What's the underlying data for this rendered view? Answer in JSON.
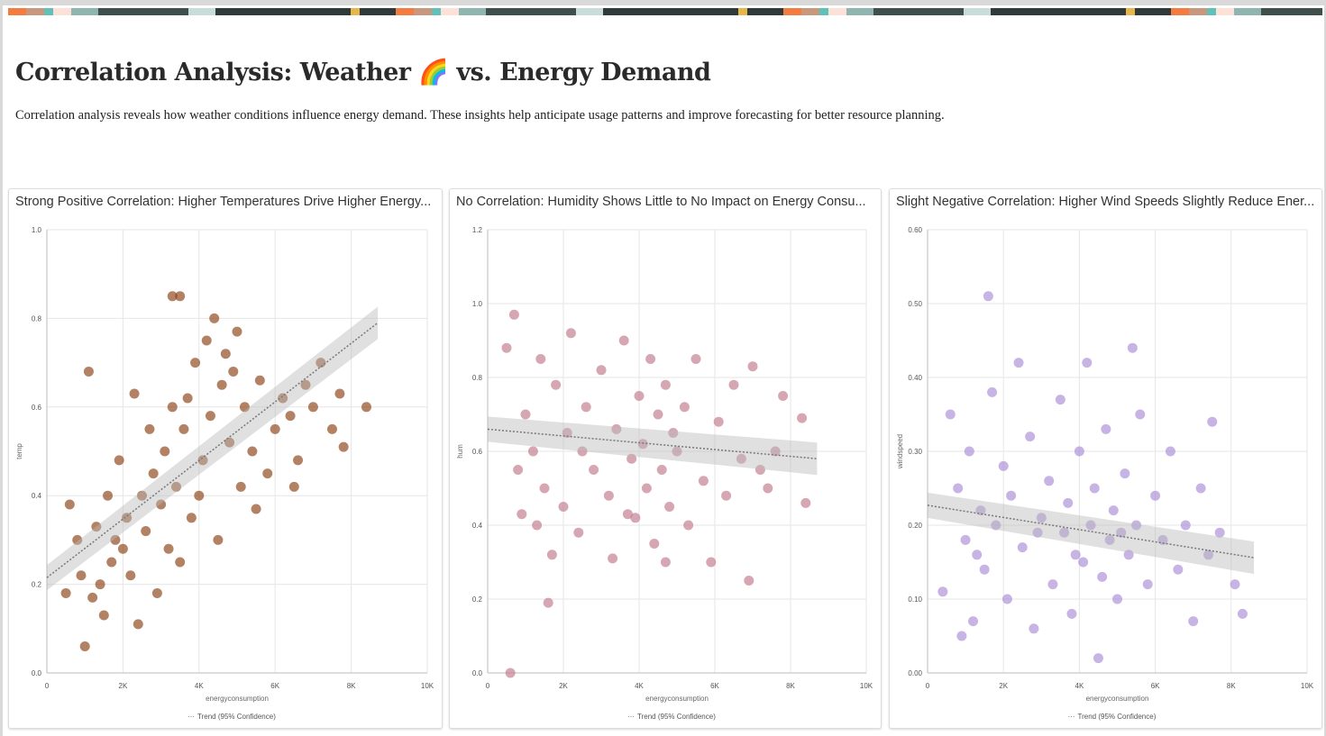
{
  "header": {
    "title": "Correlation Analysis: Weather 🌈 vs. Energy Demand",
    "description": "Correlation analysis reveals how weather conditions influence energy demand. These insights help anticipate usage patterns and improve forecasting for better resource planning."
  },
  "chart_data": [
    {
      "type": "scatter",
      "title": "Strong Positive Correlation: Higher Temperatures Drive Higher Energy...",
      "xlabel": "energyconsumption",
      "ylabel": "temp",
      "xlim": [
        0,
        10000
      ],
      "ylim": [
        0,
        1.0
      ],
      "xticks": [
        "0",
        "2K",
        "4K",
        "6K",
        "8K",
        "10K"
      ],
      "yticks": [
        "0.0",
        "0.2",
        "0.4",
        "0.6",
        "0.8",
        "1.0"
      ],
      "color": "#8b3f12",
      "legend": "Trend (95% Confidence)",
      "legend_position": "bottom",
      "grid": true,
      "trend": {
        "x": [
          0,
          8700
        ],
        "y": [
          0.215,
          0.79
        ]
      },
      "points": [
        [
          1100,
          0.68
        ],
        [
          3300,
          0.85
        ],
        [
          3500,
          0.85
        ],
        [
          1000,
          0.06
        ],
        [
          2400,
          0.11
        ],
        [
          8400,
          0.6
        ],
        [
          7800,
          0.51
        ],
        [
          600,
          0.38
        ],
        [
          800,
          0.3
        ],
        [
          900,
          0.22
        ],
        [
          1200,
          0.17
        ],
        [
          1400,
          0.2
        ],
        [
          1500,
          0.13
        ],
        [
          1700,
          0.25
        ],
        [
          1800,
          0.3
        ],
        [
          2000,
          0.28
        ],
        [
          2100,
          0.35
        ],
        [
          2200,
          0.22
        ],
        [
          2500,
          0.4
        ],
        [
          2600,
          0.32
        ],
        [
          2800,
          0.45
        ],
        [
          3000,
          0.38
        ],
        [
          3100,
          0.5
        ],
        [
          3200,
          0.28
        ],
        [
          3400,
          0.42
        ],
        [
          3600,
          0.55
        ],
        [
          3700,
          0.62
        ],
        [
          3800,
          0.35
        ],
        [
          3900,
          0.7
        ],
        [
          4100,
          0.48
        ],
        [
          4200,
          0.75
        ],
        [
          4300,
          0.58
        ],
        [
          4400,
          0.8
        ],
        [
          4600,
          0.65
        ],
        [
          4700,
          0.72
        ],
        [
          4800,
          0.52
        ],
        [
          4900,
          0.68
        ],
        [
          5000,
          0.77
        ],
        [
          5200,
          0.6
        ],
        [
          5400,
          0.5
        ],
        [
          5600,
          0.66
        ],
        [
          5800,
          0.45
        ],
        [
          6000,
          0.55
        ],
        [
          6200,
          0.62
        ],
        [
          6400,
          0.58
        ],
        [
          6600,
          0.48
        ],
        [
          6800,
          0.65
        ],
        [
          7000,
          0.6
        ],
        [
          7200,
          0.7
        ],
        [
          7500,
          0.55
        ],
        [
          7700,
          0.63
        ],
        [
          2300,
          0.63
        ],
        [
          2700,
          0.55
        ],
        [
          1600,
          0.4
        ],
        [
          1300,
          0.33
        ],
        [
          500,
          0.18
        ],
        [
          3500,
          0.25
        ],
        [
          4000,
          0.4
        ],
        [
          4500,
          0.3
        ],
        [
          5100,
          0.42
        ],
        [
          5500,
          0.37
        ],
        [
          6500,
          0.42
        ],
        [
          2900,
          0.18
        ],
        [
          3300,
          0.6
        ],
        [
          1900,
          0.48
        ]
      ]
    },
    {
      "type": "scatter",
      "title": "No Correlation: Humidity Shows Little to No Impact on Energy Consu...",
      "xlabel": "energyconsumption",
      "ylabel": "hum",
      "xlim": [
        0,
        10000
      ],
      "ylim": [
        0,
        1.2
      ],
      "xticks": [
        "0",
        "2K",
        "4K",
        "6K",
        "8K",
        "10K"
      ],
      "yticks": [
        "0.0",
        "0.2",
        "0.4",
        "0.6",
        "0.8",
        "1.0",
        "1.2"
      ],
      "color": "#c07888",
      "legend": "Trend (95% Confidence)",
      "legend_position": "bottom",
      "grid": true,
      "trend": {
        "x": [
          0,
          8700
        ],
        "y": [
          0.66,
          0.58
        ]
      },
      "points": [
        [
          600,
          0.0
        ],
        [
          1600,
          0.19
        ],
        [
          6900,
          0.25
        ],
        [
          7800,
          0.75
        ],
        [
          8300,
          0.69
        ],
        [
          8400,
          0.46
        ],
        [
          700,
          0.97
        ],
        [
          500,
          0.88
        ],
        [
          800,
          0.55
        ],
        [
          900,
          0.43
        ],
        [
          1000,
          0.7
        ],
        [
          1200,
          0.6
        ],
        [
          1400,
          0.85
        ],
        [
          1500,
          0.5
        ],
        [
          1700,
          0.32
        ],
        [
          1800,
          0.78
        ],
        [
          2000,
          0.45
        ],
        [
          2100,
          0.65
        ],
        [
          2200,
          0.92
        ],
        [
          2400,
          0.38
        ],
        [
          2600,
          0.72
        ],
        [
          2800,
          0.55
        ],
        [
          3000,
          0.82
        ],
        [
          3200,
          0.48
        ],
        [
          3300,
          0.31
        ],
        [
          3400,
          0.66
        ],
        [
          3600,
          0.9
        ],
        [
          3800,
          0.58
        ],
        [
          3900,
          0.42
        ],
        [
          4000,
          0.75
        ],
        [
          4100,
          0.62
        ],
        [
          4200,
          0.5
        ],
        [
          4300,
          0.85
        ],
        [
          4400,
          0.35
        ],
        [
          4500,
          0.7
        ],
        [
          4600,
          0.55
        ],
        [
          4700,
          0.78
        ],
        [
          4800,
          0.45
        ],
        [
          4900,
          0.65
        ],
        [
          5000,
          0.6
        ],
        [
          5200,
          0.72
        ],
        [
          5300,
          0.4
        ],
        [
          5500,
          0.85
        ],
        [
          5700,
          0.52
        ],
        [
          5900,
          0.3
        ],
        [
          6100,
          0.68
        ],
        [
          6300,
          0.48
        ],
        [
          6500,
          0.78
        ],
        [
          6700,
          0.58
        ],
        [
          7000,
          0.83
        ],
        [
          7200,
          0.55
        ],
        [
          7400,
          0.5
        ],
        [
          7600,
          0.6
        ],
        [
          2500,
          0.6
        ],
        [
          1300,
          0.4
        ],
        [
          3700,
          0.43
        ],
        [
          4700,
          0.3
        ]
      ]
    },
    {
      "type": "scatter",
      "title": "Slight Negative Correlation: Higher Wind Speeds Slightly Reduce Ener...",
      "xlabel": "energyconsumption",
      "ylabel": "windspeed",
      "xlim": [
        0,
        10000
      ],
      "ylim": [
        0,
        0.6
      ],
      "xticks": [
        "0",
        "2K",
        "4K",
        "6K",
        "8K",
        "10K"
      ],
      "yticks": [
        "0.00",
        "0.10",
        "0.20",
        "0.30",
        "0.40",
        "0.50",
        "0.60"
      ],
      "color": "#a98ad6",
      "legend": "Trend (95% Confidence)",
      "legend_position": "bottom",
      "grid": true,
      "trend": {
        "x": [
          0,
          8600
        ],
        "y": [
          0.227,
          0.156
        ]
      },
      "points": [
        [
          1600,
          0.51
        ],
        [
          5400,
          0.44
        ],
        [
          4500,
          0.02
        ],
        [
          400,
          0.11
        ],
        [
          8300,
          0.08
        ],
        [
          7500,
          0.34
        ],
        [
          600,
          0.35
        ],
        [
          800,
          0.25
        ],
        [
          1000,
          0.18
        ],
        [
          1100,
          0.3
        ],
        [
          1200,
          0.07
        ],
        [
          1400,
          0.22
        ],
        [
          1500,
          0.14
        ],
        [
          1700,
          0.38
        ],
        [
          1800,
          0.2
        ],
        [
          2000,
          0.28
        ],
        [
          2100,
          0.1
        ],
        [
          2200,
          0.24
        ],
        [
          2400,
          0.42
        ],
        [
          2500,
          0.17
        ],
        [
          2700,
          0.32
        ],
        [
          2800,
          0.06
        ],
        [
          3000,
          0.21
        ],
        [
          3200,
          0.26
        ],
        [
          3300,
          0.12
        ],
        [
          3500,
          0.37
        ],
        [
          3600,
          0.19
        ],
        [
          3700,
          0.23
        ],
        [
          3800,
          0.08
        ],
        [
          4000,
          0.3
        ],
        [
          4100,
          0.15
        ],
        [
          4200,
          0.42
        ],
        [
          4300,
          0.2
        ],
        [
          4400,
          0.25
        ],
        [
          4600,
          0.13
        ],
        [
          4700,
          0.33
        ],
        [
          4800,
          0.18
        ],
        [
          4900,
          0.22
        ],
        [
          5000,
          0.1
        ],
        [
          5200,
          0.27
        ],
        [
          5300,
          0.16
        ],
        [
          5500,
          0.2
        ],
        [
          5600,
          0.35
        ],
        [
          5800,
          0.12
        ],
        [
          6000,
          0.24
        ],
        [
          6200,
          0.18
        ],
        [
          6400,
          0.3
        ],
        [
          6600,
          0.14
        ],
        [
          6800,
          0.2
        ],
        [
          7000,
          0.07
        ],
        [
          7200,
          0.25
        ],
        [
          7400,
          0.16
        ],
        [
          7700,
          0.19
        ],
        [
          8100,
          0.12
        ],
        [
          1300,
          0.16
        ],
        [
          2900,
          0.19
        ],
        [
          3900,
          0.16
        ],
        [
          5100,
          0.19
        ],
        [
          900,
          0.05
        ]
      ]
    }
  ]
}
